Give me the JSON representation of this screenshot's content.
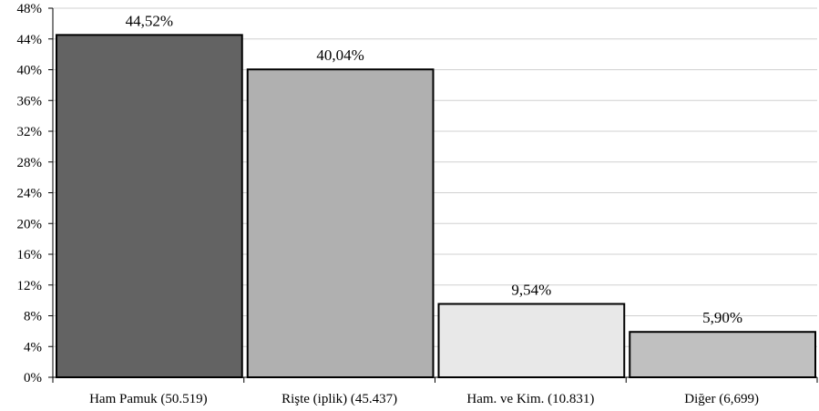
{
  "chart_data": {
    "type": "bar",
    "categories": [
      "Ham Pamuk (50.519)",
      "Rişte (iplik) (45.437)",
      "Ham. ve Kim. (10.831)",
      "Diğer (6,699)"
    ],
    "values": [
      44.52,
      40.04,
      9.54,
      5.9
    ],
    "data_labels": [
      "44,52%",
      "40,04%",
      "9,54%",
      "5,90%"
    ],
    "bar_colors": [
      "#636363",
      "#b0b0b0",
      "#e8e8e8",
      "#c0c0c0"
    ],
    "y_ticks": [
      0,
      4,
      8,
      12,
      16,
      20,
      24,
      28,
      32,
      36,
      40,
      44,
      48
    ],
    "y_tick_labels": [
      "0%",
      "4%",
      "8%",
      "12%",
      "16%",
      "20%",
      "24%",
      "28%",
      "32%",
      "36%",
      "40%",
      "44%",
      "48%"
    ],
    "ylim": [
      0,
      48
    ],
    "grid": true,
    "legend": "none",
    "title": "",
    "xlabel": "",
    "ylabel": ""
  }
}
